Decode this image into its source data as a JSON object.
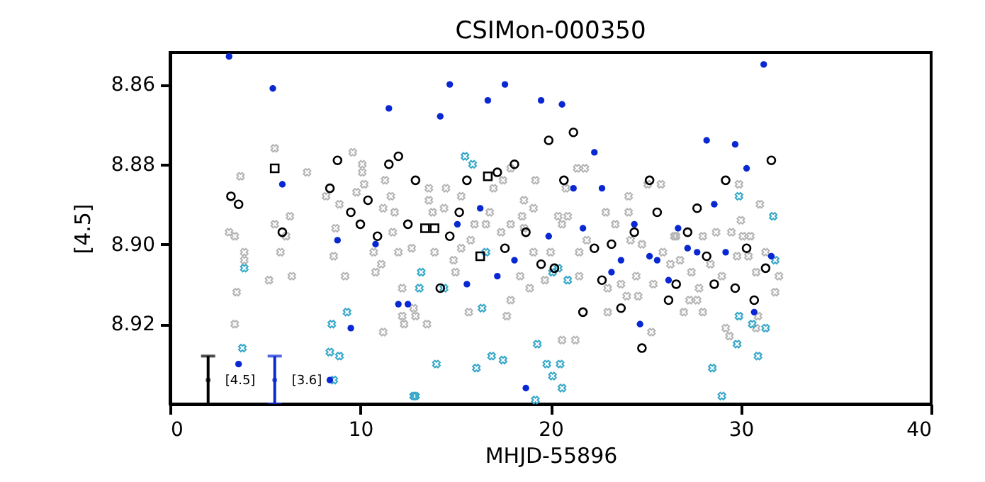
{
  "chart_data": {
    "type": "scatter",
    "title": "CSIMon-000350",
    "xlabel": "MHJD-55896",
    "ylabel": "[4.5]",
    "xlim": [
      0,
      40
    ],
    "xticks": [
      0,
      10,
      20,
      30,
      40
    ],
    "ylim": [
      8.94,
      8.852
    ],
    "yticks": [
      8.86,
      8.88,
      {
        "value": 8.9,
        "label": "8.90"
      },
      8.92
    ],
    "grid": false,
    "annotations": [
      "[4.5]",
      "[3.6]"
    ],
    "series": [
      {
        "color": "#b4b4b4",
        "marker": "cross",
        "x": [
          5.5,
          3.7,
          7.2,
          3.1,
          3.4,
          3.9,
          3.9,
          6.3,
          5.8,
          5.5,
          6.1,
          5.2,
          6.4,
          3.5,
          3.4,
          8.2,
          8.9,
          8.7,
          8.6,
          9.2,
          9.6,
          10.1,
          10.1,
          10.2,
          9.8,
          11.3,
          11.6,
          11.2,
          11.8,
          11.7,
          10.7,
          11.1,
          10.8,
          12.0,
          12.7,
          12.2,
          12.8,
          12.2,
          12.3,
          11.2,
          13.6,
          14.5,
          15.3,
          13.6,
          13.8,
          14.4,
          13.9,
          14.9,
          15.0,
          15.8,
          15.3,
          16.0,
          16.6,
          16.8,
          17.4,
          17.9,
          18.6,
          19.1,
          18.5,
          18.6,
          19.2,
          17.5,
          17.0,
          17.9,
          18.4,
          17.9,
          17.7,
          15.7,
          13.5,
          12.9,
          19.1,
          20.0,
          19.7,
          18.9,
          20.6,
          20.4,
          20.9,
          20.8,
          21.4,
          21.8,
          21.5,
          21.9,
          21.5,
          22.9,
          23.4,
          24.1,
          24.2,
          24.8,
          24.1,
          25.1,
          25.8,
          24.5,
          23.7,
          23.0,
          24.0,
          24.6,
          23.0,
          25.4,
          25.3,
          20.6,
          21.3,
          25.9,
          26.5,
          26.3,
          29.9,
          31.0,
          30.0,
          26.6,
          28.0,
          28.7,
          29.5,
          30.5,
          30.1,
          26.8,
          28.4,
          29.8,
          30.4,
          31.3,
          30.8,
          32.0,
          27.4,
          29.0,
          27.8,
          31.8,
          27.3,
          27.7,
          27.0,
          28.0,
          29.2,
          29.4,
          30.9,
          30.8
        ],
        "values": [
          8.876,
          8.883,
          8.882,
          8.897,
          8.898,
          8.902,
          8.904,
          8.893,
          8.902,
          8.895,
          8.898,
          8.909,
          8.908,
          8.912,
          8.92,
          8.888,
          8.89,
          8.896,
          8.903,
          8.908,
          8.877,
          8.88,
          8.882,
          8.885,
          8.887,
          8.884,
          8.888,
          8.891,
          8.892,
          8.897,
          8.902,
          8.905,
          8.907,
          8.902,
          8.901,
          8.911,
          8.916,
          8.918,
          8.92,
          8.922,
          8.886,
          8.886,
          8.888,
          8.889,
          8.892,
          8.891,
          8.902,
          8.904,
          8.907,
          8.899,
          8.901,
          8.895,
          8.895,
          8.892,
          8.897,
          8.895,
          8.889,
          8.891,
          8.893,
          8.896,
          8.884,
          8.884,
          8.886,
          8.881,
          8.908,
          8.914,
          8.918,
          8.917,
          8.92,
          8.918,
          8.902,
          8.902,
          8.909,
          8.911,
          8.895,
          8.893,
          8.893,
          8.886,
          8.881,
          8.881,
          8.908,
          8.899,
          8.902,
          8.892,
          8.895,
          8.888,
          8.899,
          8.9,
          8.892,
          8.885,
          8.885,
          8.908,
          8.91,
          8.911,
          8.913,
          8.913,
          8.917,
          8.91,
          8.922,
          8.924,
          8.924,
          8.902,
          8.898,
          8.905,
          8.885,
          8.89,
          8.894,
          8.898,
          8.898,
          8.897,
          8.897,
          8.898,
          8.898,
          8.904,
          8.905,
          8.903,
          8.903,
          8.902,
          8.907,
          8.908,
          8.907,
          8.908,
          8.911,
          8.912,
          8.914,
          8.914,
          8.917,
          8.917,
          8.921,
          8.923,
          8.918,
          8.921
        ]
      },
      {
        "color": "#33a6c8",
        "marker": "cross",
        "x": [
          3.9,
          3.8,
          9.3,
          8.5,
          8.4,
          8.9,
          8.6,
          13.2,
          13.1,
          12.8,
          15.5,
          15.9,
          14.4,
          16.6,
          20.1,
          20.4,
          20.9,
          16.4,
          19.3,
          16.9,
          17.5,
          14.0,
          16.1,
          19.8,
          20.5,
          20.1,
          20.6,
          19.2,
          12.9,
          29.9,
          31.7,
          31.8,
          29.9,
          30.6,
          31.3,
          29.8,
          30.9,
          28.5,
          29.0
        ],
        "values": [
          8.906,
          8.926,
          8.917,
          8.92,
          8.927,
          8.928,
          8.934,
          8.907,
          8.911,
          8.938,
          8.878,
          8.88,
          8.911,
          8.902,
          8.907,
          8.906,
          8.909,
          8.916,
          8.925,
          8.928,
          8.929,
          8.93,
          8.931,
          8.93,
          8.93,
          8.933,
          8.936,
          8.939,
          8.938,
          8.888,
          8.893,
          8.904,
          8.918,
          8.92,
          8.921,
          8.925,
          8.928,
          8.931,
          8.938
        ]
      },
      {
        "color": "#000000",
        "marker": "circle",
        "x": [
          3.2,
          3.6,
          5.9,
          8.8,
          8.4,
          9.5,
          10.0,
          10.4,
          10.9,
          11.5,
          12.0,
          12.9,
          12.5,
          15.6,
          17.2,
          18.1,
          19.9,
          21.2,
          20.7,
          25.2,
          15.2,
          25.6,
          14.7,
          17.6,
          18.7,
          19.5,
          20.2,
          22.3,
          23.2,
          24.4,
          22.7,
          26.6,
          26.2,
          14.2,
          21.7,
          23.7,
          24.8,
          31.6,
          29.2,
          27.7,
          27.2,
          28.2,
          30.3,
          31.3,
          28.6,
          29.7,
          30.7
        ],
        "values": [
          8.888,
          8.89,
          8.897,
          8.879,
          8.886,
          8.892,
          8.895,
          8.889,
          8.898,
          8.88,
          8.878,
          8.884,
          8.895,
          8.884,
          8.882,
          8.88,
          8.874,
          8.872,
          8.884,
          8.884,
          8.892,
          8.892,
          8.898,
          8.901,
          8.897,
          8.905,
          8.906,
          8.901,
          8.9,
          8.897,
          8.909,
          8.91,
          8.914,
          8.911,
          8.917,
          8.916,
          8.926,
          8.879,
          8.884,
          8.891,
          8.897,
          8.903,
          8.901,
          8.906,
          8.91,
          8.911,
          8.914
        ]
      },
      {
        "color": "#000000",
        "marker": "square",
        "x": [
          5.5,
          16.7,
          13.4,
          13.9,
          16.3
        ],
        "values": [
          8.881,
          8.883,
          8.896,
          8.896,
          8.903
        ]
      },
      {
        "color": "#0a28d2",
        "marker": "circle",
        "x": [
          3.1,
          5.4,
          11.5,
          5.9,
          8.8,
          10.8,
          12.0,
          12.5,
          9.5,
          8.4,
          3.6,
          14.7,
          17.6,
          16.7,
          19.5,
          20.6,
          14.2,
          22.3,
          21.2,
          22.7,
          16.3,
          15.1,
          21.7,
          19.9,
          24.4,
          26.7,
          18.1,
          17.2,
          15.6,
          23.7,
          25.2,
          25.6,
          23.2,
          26.2,
          24.7,
          18.7,
          31.2,
          28.2,
          29.7,
          30.3,
          28.6,
          27.2,
          27.7,
          29.2,
          31.6,
          30.7
        ],
        "values": [
          8.853,
          8.861,
          8.866,
          8.885,
          8.899,
          8.9,
          8.915,
          8.915,
          8.921,
          8.934,
          8.93,
          8.86,
          8.86,
          8.864,
          8.864,
          8.865,
          8.868,
          8.877,
          8.886,
          8.886,
          8.891,
          8.895,
          8.896,
          8.898,
          8.895,
          8.896,
          8.904,
          8.908,
          8.91,
          8.904,
          8.903,
          8.904,
          8.907,
          8.909,
          8.92,
          8.936,
          8.855,
          8.874,
          8.875,
          8.881,
          8.89,
          8.901,
          8.902,
          8.902,
          8.903,
          8.917
        ]
      },
      {
        "color": "#000000",
        "marker": "circle",
        "x": [
          2.0
        ],
        "values": [
          8.934
        ],
        "errors": [
          0.006
        ]
      },
      {
        "color": "#0a28d2",
        "marker": "circle",
        "x": [
          5.5
        ],
        "values": [
          8.934
        ],
        "errors": [
          0.006
        ]
      }
    ]
  }
}
